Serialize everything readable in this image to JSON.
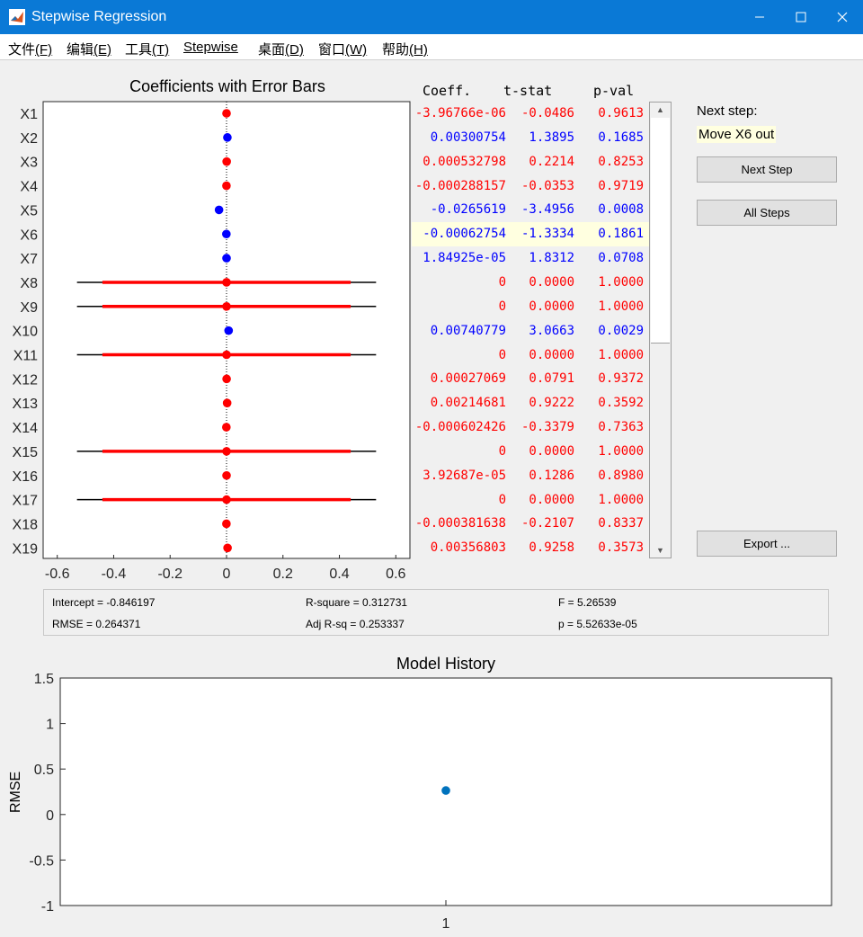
{
  "window": {
    "title": "Stepwise Regression"
  },
  "menu": [
    {
      "label": "文件",
      "key": "(F)"
    },
    {
      "label": "编辑",
      "key": "(E)"
    },
    {
      "label": "工具",
      "key": "(T)"
    },
    {
      "label": "Stepwise",
      "key": ""
    },
    {
      "label": "桌面",
      "key": "(D)"
    },
    {
      "label": "窗口",
      "key": "(W)"
    },
    {
      "label": "帮助",
      "key": "(H)"
    }
  ],
  "coef_panel": {
    "title": "Coefficients with Error Bars",
    "headers": {
      "coeff": "Coeff.",
      "tstat": "t-stat",
      "pval": "p-val"
    },
    "rows": [
      {
        "label": "X1",
        "coeff": "-3.96766e-06",
        "t": "-0.0486",
        "p": "0.9613",
        "in": false
      },
      {
        "label": "X2",
        "coeff": "0.00300754",
        "t": "1.3895",
        "p": "0.1685",
        "in": true
      },
      {
        "label": "X3",
        "coeff": "0.000532798",
        "t": "0.2214",
        "p": "0.8253",
        "in": false
      },
      {
        "label": "X4",
        "coeff": "-0.000288157",
        "t": "-0.0353",
        "p": "0.9719",
        "in": false
      },
      {
        "label": "X5",
        "coeff": "-0.0265619",
        "t": "-3.4956",
        "p": "0.0008",
        "in": true
      },
      {
        "label": "X6",
        "coeff": "-0.00062754",
        "t": "-1.3334",
        "p": "0.1861",
        "in": true
      },
      {
        "label": "X7",
        "coeff": "1.84925e-05",
        "t": "1.8312",
        "p": "0.0708",
        "in": true
      },
      {
        "label": "X8",
        "coeff": "0",
        "t": "0.0000",
        "p": "1.0000",
        "in": false
      },
      {
        "label": "X9",
        "coeff": "0",
        "t": "0.0000",
        "p": "1.0000",
        "in": false
      },
      {
        "label": "X10",
        "coeff": "0.00740779",
        "t": "3.0663",
        "p": "0.0029",
        "in": true
      },
      {
        "label": "X11",
        "coeff": "0",
        "t": "0.0000",
        "p": "1.0000",
        "in": false
      },
      {
        "label": "X12",
        "coeff": "0.00027069",
        "t": "0.0791",
        "p": "0.9372",
        "in": false
      },
      {
        "label": "X13",
        "coeff": "0.00214681",
        "t": "0.9222",
        "p": "0.3592",
        "in": false
      },
      {
        "label": "X14",
        "coeff": "-0.000602426",
        "t": "-0.3379",
        "p": "0.7363",
        "in": false
      },
      {
        "label": "X15",
        "coeff": "0",
        "t": "0.0000",
        "p": "1.0000",
        "in": false
      },
      {
        "label": "X16",
        "coeff": "3.92687e-05",
        "t": "0.1286",
        "p": "0.8980",
        "in": false
      },
      {
        "label": "X17",
        "coeff": "0",
        "t": "0.0000",
        "p": "1.0000",
        "in": false
      },
      {
        "label": "X18",
        "coeff": "-0.000381638",
        "t": "-0.2107",
        "p": "0.8337",
        "in": false
      },
      {
        "label": "X19",
        "coeff": "0.00356803",
        "t": "0.9258",
        "p": "0.3573",
        "in": false
      }
    ],
    "highlight_row": "X6"
  },
  "next_step": {
    "label": "Next step:",
    "value": "Move X6 out"
  },
  "buttons": {
    "next_step": "Next Step",
    "all_steps": "All Steps",
    "export": "Export ..."
  },
  "stats": {
    "intercept": "Intercept = -0.846197",
    "rmse": "RMSE = 0.264371",
    "rsq": "R-square = 0.312731",
    "adj_rsq": "Adj R-sq = 0.253337",
    "f": "F = 5.26539",
    "p": "p = 5.52633e-05"
  },
  "colors": {
    "in_model": "#0000ff",
    "out_model": "#ff0000",
    "history_point": "#0072bd",
    "titlebar": "#0a79d6"
  },
  "chart_data": [
    {
      "type": "scatter",
      "title": "Coefficients with Error Bars",
      "xlim": [
        -0.65,
        0.65
      ],
      "xticks": [
        "-0.6",
        "-0.4",
        "-0.2",
        "0",
        "0.2",
        "0.4",
        "0.6"
      ],
      "categories": [
        "X1",
        "X2",
        "X3",
        "X4",
        "X5",
        "X6",
        "X7",
        "X8",
        "X9",
        "X10",
        "X11",
        "X12",
        "X13",
        "X14",
        "X15",
        "X16",
        "X17",
        "X18",
        "X19"
      ],
      "values": [
        0.0,
        0.003,
        0.0005,
        -0.0003,
        -0.0266,
        -0.0006,
        2e-05,
        0,
        0,
        0.0074,
        0,
        0.0003,
        0.0021,
        -0.0006,
        0,
        4e-05,
        0,
        -0.0004,
        0.0036
      ],
      "error_bars": [
        {
          "row": "X8",
          "inner": [
            -0.44,
            0.44
          ],
          "outer": [
            -0.53,
            0.53
          ]
        },
        {
          "row": "X9",
          "inner": [
            -0.44,
            0.44
          ],
          "outer": [
            -0.53,
            0.53
          ]
        },
        {
          "row": "X11",
          "inner": [
            -0.44,
            0.44
          ],
          "outer": [
            -0.53,
            0.53
          ]
        },
        {
          "row": "X15",
          "inner": [
            -0.44,
            0.44
          ],
          "outer": [
            -0.53,
            0.53
          ]
        },
        {
          "row": "X17",
          "inner": [
            -0.44,
            0.44
          ],
          "outer": [
            -0.53,
            0.53
          ]
        }
      ]
    },
    {
      "type": "scatter",
      "title": "Model History",
      "ylabel": "RMSE",
      "ylim": [
        -1,
        1.5
      ],
      "yticks": [
        "1.5",
        "1",
        "0.5",
        "0",
        "-0.5",
        "-1"
      ],
      "xticks": [
        "1"
      ],
      "x": [
        1
      ],
      "y": [
        0.264
      ]
    }
  ]
}
